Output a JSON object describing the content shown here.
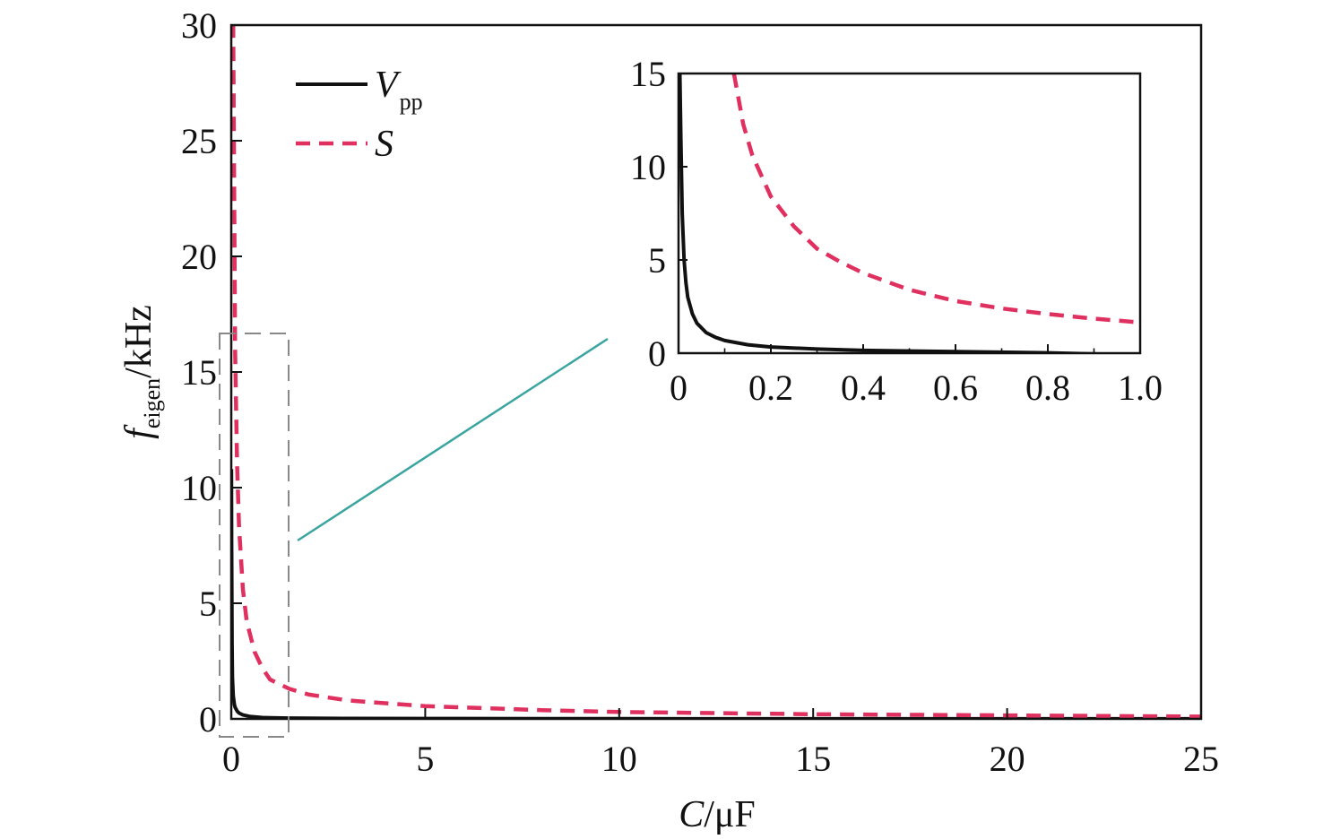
{
  "chart_data": [
    {
      "type": "line",
      "xlabel": {
        "var": "C",
        "unit": "/μF"
      },
      "ylabel": {
        "var": "f",
        "sub": "eigen",
        "unit": "/kHz"
      },
      "xlim": [
        0,
        25
      ],
      "ylim": [
        0,
        30
      ],
      "xticks": [
        "0",
        "5",
        "10",
        "15",
        "20",
        "25"
      ],
      "yticks": [
        "0",
        "5",
        "10",
        "15",
        "20",
        "25",
        "30"
      ],
      "legend": {
        "position": "top-left"
      },
      "series": [
        {
          "name": "V",
          "name_sub": "pp",
          "style": "solid",
          "color": "#111111",
          "x": [
            0.005,
            0.01,
            0.02,
            0.03,
            0.05,
            0.08,
            0.1,
            0.15,
            0.2,
            0.3,
            0.5,
            0.8,
            1,
            1.5,
            2,
            3,
            5,
            8,
            10,
            15,
            20,
            25
          ],
          "y": [
            10.8,
            7.6,
            3.2,
            1.8,
            1.0,
            0.62,
            0.5,
            0.34,
            0.25,
            0.17,
            0.1,
            0.06,
            0.05,
            0.035,
            0.03,
            0.02,
            0.015,
            0.01,
            0.008,
            0.005,
            0.004,
            0.003
          ]
        },
        {
          "name": "S",
          "style": "dashed",
          "color": "#e0305f",
          "x": [
            0.01,
            0.05,
            0.1,
            0.15,
            0.2,
            0.3,
            0.4,
            0.6,
            0.8,
            1.0,
            1.5,
            2,
            3,
            5,
            8,
            10,
            15,
            20,
            25
          ],
          "y": [
            30,
            30,
            16,
            11,
            8.3,
            5.6,
            4.2,
            2.9,
            2.2,
            1.7,
            1.3,
            1.05,
            0.8,
            0.55,
            0.38,
            0.3,
            0.2,
            0.15,
            0.1
          ]
        }
      ]
    },
    {
      "type": "line",
      "inset": true,
      "xlim": [
        0,
        1.0
      ],
      "ylim": [
        0,
        15
      ],
      "xticks": [
        "0",
        "0.2",
        "0.4",
        "0.6",
        "0.8",
        "1.0"
      ],
      "yticks": [
        "0",
        "5",
        "10",
        "15"
      ],
      "series": [
        {
          "name": "V",
          "name_sub": "pp",
          "style": "solid",
          "color": "#111111",
          "x": [
            0.003,
            0.005,
            0.008,
            0.012,
            0.016,
            0.02,
            0.03,
            0.04,
            0.06,
            0.08,
            0.1,
            0.15,
            0.2,
            0.3,
            0.4,
            0.6,
            0.8,
            1.0
          ],
          "y": [
            15,
            11.5,
            7.5,
            5.0,
            3.8,
            3.0,
            2.1,
            1.6,
            1.1,
            0.85,
            0.68,
            0.45,
            0.33,
            0.22,
            0.15,
            0.08,
            0.02,
            -0.1
          ]
        },
        {
          "name": "S",
          "style": "dashed",
          "color": "#e0305f",
          "x": [
            0.12,
            0.14,
            0.16,
            0.2,
            0.25,
            0.3,
            0.35,
            0.4,
            0.5,
            0.6,
            0.7,
            0.8,
            0.9,
            1.0
          ],
          "y": [
            15,
            12.3,
            10.6,
            8.4,
            6.8,
            5.6,
            4.9,
            4.3,
            3.4,
            2.8,
            2.4,
            2.1,
            1.85,
            1.65
          ]
        }
      ]
    }
  ]
}
